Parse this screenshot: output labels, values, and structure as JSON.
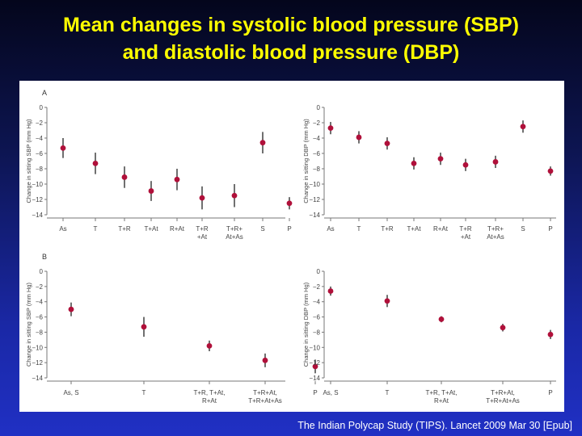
{
  "slide": {
    "title_line1": "Mean changes in systolic blood pressure (SBP)",
    "title_line2": "and diastolic blood pressure (DBP)",
    "citation": "The Indian Polycap Study (TIPS). Lancet 2009 Mar 30 [Epub]"
  },
  "colors": {
    "title": "#ffff00",
    "marker": "#b0103a",
    "axis": "#777777",
    "bg_top": "#04061c",
    "bg_bottom": "#2030c4"
  },
  "chart_data": [
    {
      "panel_label": "A",
      "type": "scatter",
      "ylabel": "Change in sitting SBP (mm Hg)",
      "yticks": [
        0,
        -2,
        -4,
        -6,
        -8,
        -10,
        -12,
        -14
      ],
      "ylim": [
        -14,
        0
      ],
      "categories": [
        "As",
        "T",
        "T+R",
        "T+At",
        "R+At",
        "T+R\n+At",
        "T+R+\nAt+As",
        "S",
        "P"
      ],
      "values": [
        -5.3,
        -7.3,
        -9.1,
        -10.9,
        -9.4,
        -11.8,
        -11.5,
        -4.6,
        -12.5
      ],
      "errors": [
        1.3,
        1.4,
        1.4,
        1.3,
        1.4,
        1.5,
        1.5,
        1.4,
        0.8
      ]
    },
    {
      "panel_label": "",
      "type": "scatter",
      "ylabel": "Change in sitting DBP (mm Hg)",
      "yticks": [
        0,
        -2,
        -4,
        -6,
        -8,
        -10,
        -12,
        -14
      ],
      "ylim": [
        -14,
        0
      ],
      "categories": [
        "As",
        "T",
        "T+R",
        "T+At",
        "R+At",
        "T+R\n+At",
        "T+R+\nAt+As",
        "S",
        "P"
      ],
      "values": [
        -2.7,
        -3.9,
        -4.7,
        -7.3,
        -6.7,
        -7.5,
        -7.1,
        -2.5,
        -8.3
      ],
      "errors": [
        0.8,
        0.8,
        0.8,
        0.8,
        0.8,
        0.8,
        0.8,
        0.8,
        0.6
      ]
    },
    {
      "panel_label": "B",
      "type": "scatter",
      "ylabel": "Change in sitting SBP (mm Hg)",
      "yticks": [
        0,
        -2,
        -4,
        -6,
        -8,
        -10,
        -12,
        -14
      ],
      "ylim": [
        -14,
        0
      ],
      "categories": [
        "As, S",
        "T",
        "T+R, T+At,\nR+At",
        "T+R+At,\nT+R+At+As",
        "P"
      ],
      "values": [
        -5.0,
        -7.3,
        -9.8,
        -11.7,
        -12.5
      ],
      "errors": [
        0.9,
        1.3,
        0.7,
        0.9,
        0.9
      ]
    },
    {
      "panel_label": "",
      "type": "scatter",
      "ylabel": "Change in sitting DBP (mm Hg)",
      "yticks": [
        0,
        -2,
        -4,
        -6,
        -8,
        -10,
        -12,
        -14
      ],
      "ylim": [
        -14,
        0
      ],
      "categories": [
        "As, S",
        "T",
        "T+R, T+At,\nR+At",
        "T+R+At,\nT+R+At+As",
        "P"
      ],
      "values": [
        -2.6,
        -3.9,
        -6.3,
        -7.4,
        -8.3
      ],
      "errors": [
        0.6,
        0.8,
        0.4,
        0.5,
        0.6
      ]
    }
  ]
}
